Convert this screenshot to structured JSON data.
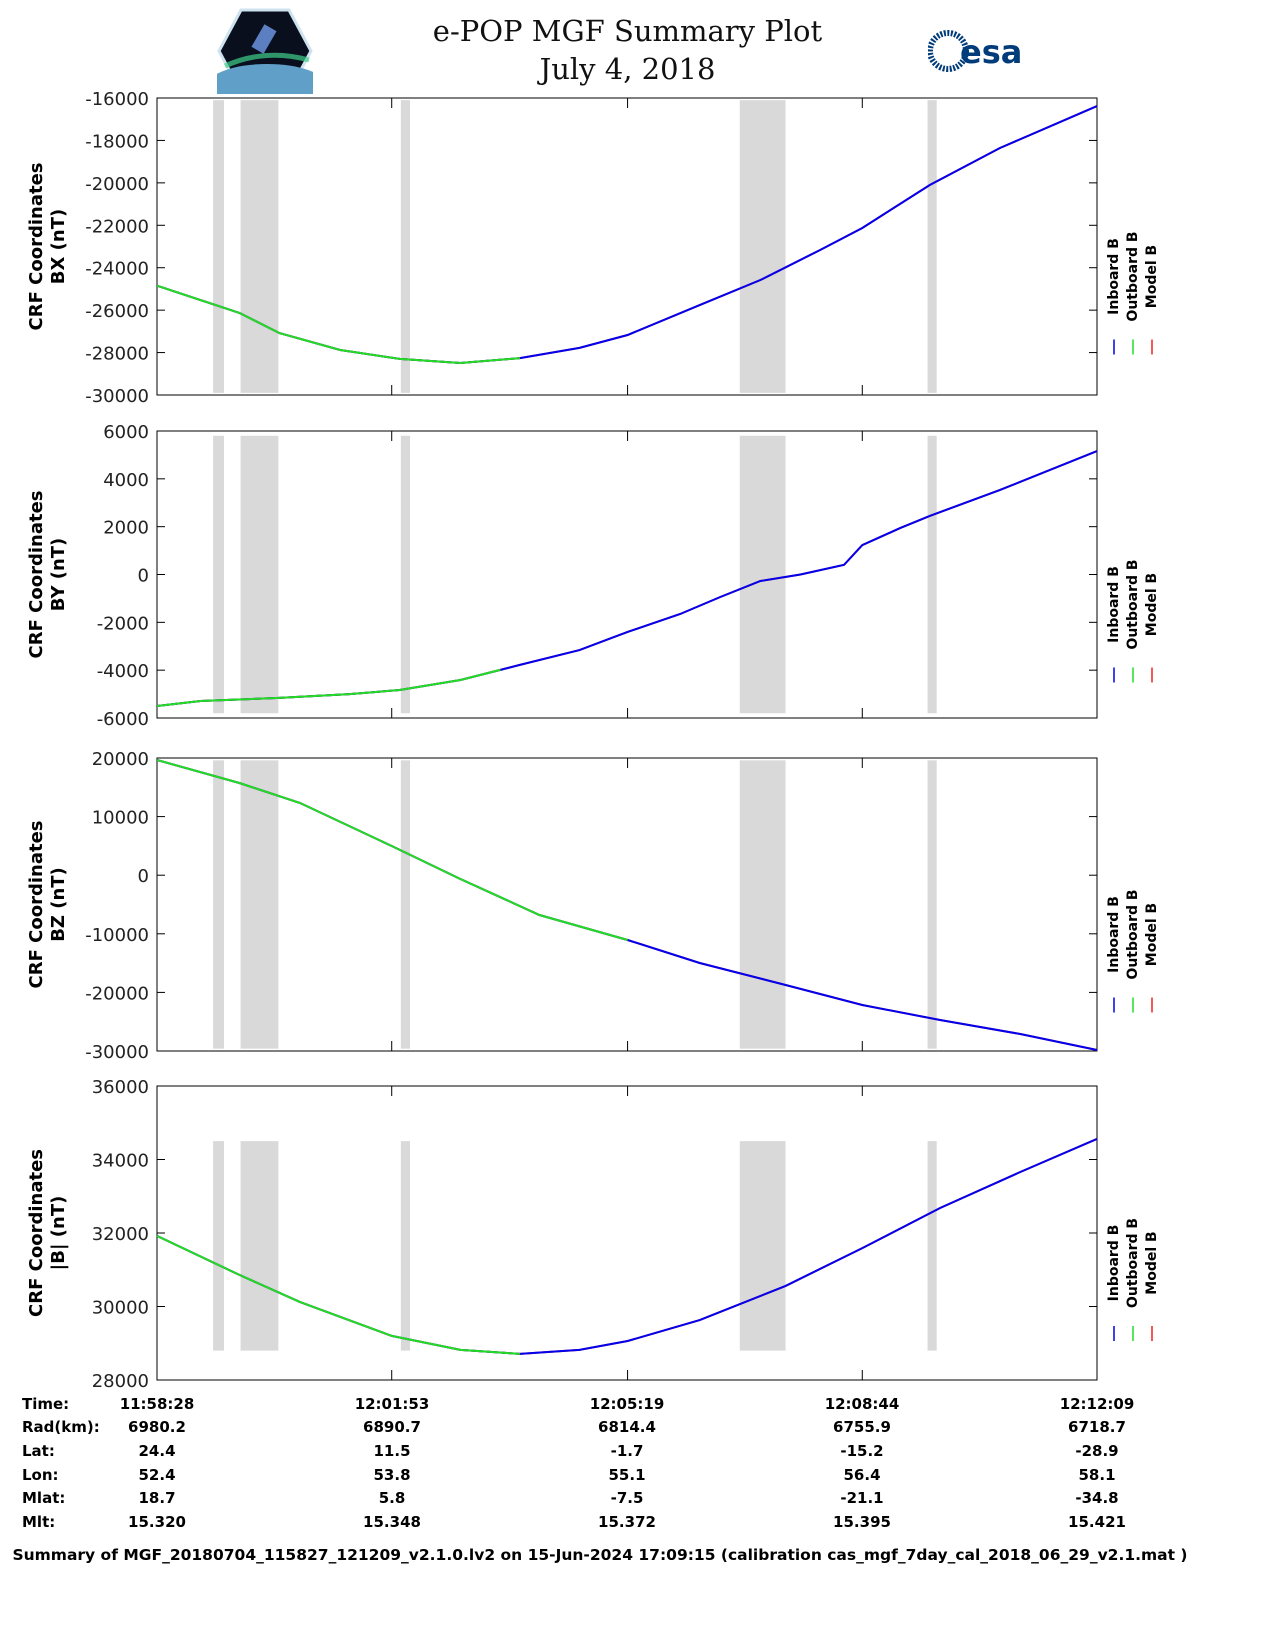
{
  "header": {
    "title": "e-POP MGF Summary Plot",
    "date": "July 4, 2018",
    "logo_left": "CASSIOPE",
    "logo_right": "esa"
  },
  "colors": {
    "inboard": "#0000ee",
    "outboard": "#22dd22",
    "model": "#ee2222",
    "band": "#d9d9d9"
  },
  "chart_data": [
    {
      "type": "line",
      "ylabel1": "CRF Coordinates",
      "ylabel2": "BX (nT)",
      "ylim": [
        -30000,
        -16000
      ],
      "yticks": [
        -30000,
        -28000,
        -26000,
        -24000,
        -22000,
        -20000,
        -18000,
        -16000
      ],
      "x": [
        0,
        72,
        107,
        160,
        212,
        265,
        317,
        369,
        411,
        474,
        527,
        579,
        616,
        675,
        736,
        821
      ],
      "y": [
        -24850,
        -26130,
        -27080,
        -27880,
        -28300,
        -28490,
        -28260,
        -27780,
        -27170,
        -25760,
        -24580,
        -23170,
        -22130,
        -20100,
        -18360,
        -16380
      ],
      "outboard_until": 317,
      "band_ylim": [
        -29900,
        -16100
      ]
    },
    {
      "type": "line",
      "ylabel1": "CRF Coordinates",
      "ylabel2": "BY (nT)",
      "ylim": [
        -6000,
        6000
      ],
      "yticks": [
        -6000,
        -4000,
        -2000,
        0,
        2000,
        4000,
        6000
      ],
      "x": [
        0,
        38,
        107,
        168,
        212,
        265,
        317,
        369,
        411,
        457,
        492,
        527,
        562,
        600,
        616,
        649,
        675,
        736,
        821
      ],
      "y": [
        -5500,
        -5290,
        -5160,
        -5000,
        -4830,
        -4410,
        -3780,
        -3160,
        -2400,
        -1650,
        -940,
        -270,
        0,
        400,
        1230,
        1940,
        2450,
        3530,
        5160
      ],
      "outboard_until": 300,
      "band_ylim": [
        -5800,
        5800
      ]
    },
    {
      "type": "line",
      "ylabel1": "CRF Coordinates",
      "ylabel2": "BZ (nT)",
      "ylim": [
        -30000,
        20000
      ],
      "yticks": [
        -30000,
        -20000,
        -10000,
        0,
        10000,
        20000
      ],
      "x": [
        0,
        72,
        125,
        205,
        265,
        334,
        411,
        474,
        549,
        616,
        684,
        754,
        821
      ],
      "y": [
        19660,
        15730,
        12320,
        4980,
        -650,
        -6790,
        -11060,
        -14980,
        -18740,
        -22150,
        -24710,
        -27100,
        -29830
      ],
      "outboard_until": 415,
      "band_ylim": [
        -29600,
        19600
      ]
    },
    {
      "type": "line",
      "ylabel1": "CRF Coordinates",
      "ylabel2": "|B| (nT)",
      "ylim": [
        28000,
        36000
      ],
      "yticks": [
        28000,
        30000,
        32000,
        34000,
        36000
      ],
      "x": [
        0,
        72,
        125,
        205,
        265,
        317,
        369,
        411,
        474,
        549,
        616,
        684,
        754,
        821
      ],
      "y": [
        31920,
        30860,
        30120,
        29200,
        28820,
        28710,
        28820,
        29060,
        29630,
        30560,
        31590,
        32680,
        33660,
        34560
      ],
      "outboard_until": 317,
      "band_ylim": [
        28800,
        34500
      ]
    }
  ],
  "time_axis": {
    "xlim": [
      0,
      821
    ],
    "ticks": [
      0,
      205,
      411,
      616,
      821
    ]
  },
  "bands": [
    [
      49,
      58.5
    ],
    [
      73,
      106
    ],
    [
      213,
      221
    ],
    [
      509,
      549
    ],
    [
      673,
      681
    ]
  ],
  "legend": [
    "Inboard B",
    "Outboard B",
    "Model B"
  ],
  "table": {
    "columns": [
      {
        "time": "11:58:28",
        "rad": "6980.2",
        "lat": "24.4",
        "lon": "52.4",
        "mlat": "18.7",
        "mlt": "15.320"
      },
      {
        "time": "12:01:53",
        "rad": "6890.7",
        "lat": "11.5",
        "lon": "53.8",
        "mlat": "5.8",
        "mlt": "15.348"
      },
      {
        "time": "12:05:19",
        "rad": "6814.4",
        "lat": "-1.7",
        "lon": "55.1",
        "mlat": "-7.5",
        "mlt": "15.372"
      },
      {
        "time": "12:08:44",
        "rad": "6755.9",
        "lat": "-15.2",
        "lon": "56.4",
        "mlat": "-21.1",
        "mlt": "15.395"
      },
      {
        "time": "12:12:09",
        "rad": "6718.7",
        "lat": "-28.9",
        "lon": "58.1",
        "mlat": "-34.8",
        "mlt": "15.421"
      }
    ],
    "row_labels": {
      "time": "Time:",
      "rad": "Rad(km):",
      "lat": "Lat:",
      "lon": "Lon:",
      "mlat": "Mlat:",
      "mlt": "Mlt:"
    }
  },
  "footer": "Summary of MGF_20180704_115827_121209_v2.1.0.lv2 on 15-Jun-2024 17:09:15 (calibration cas_mgf_7day_cal_2018_06_29_v2.1.mat )"
}
